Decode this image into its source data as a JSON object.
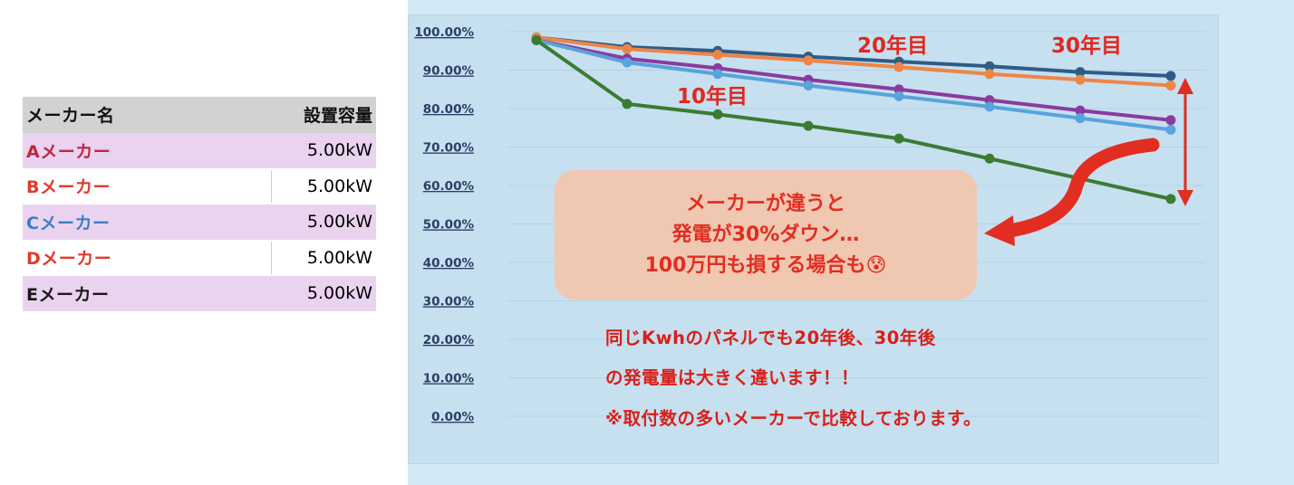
{
  "table": {
    "header": {
      "name": "メーカー名",
      "capacity": "設置容量"
    },
    "rows": [
      {
        "name": "Aメーカー",
        "capacity": "5.00kW",
        "name_color": "#c0263f"
      },
      {
        "name": "Bメーカー",
        "capacity": "5.00kW",
        "name_color": "#e03a2c"
      },
      {
        "name": "Cメーカー",
        "capacity": "5.00kW",
        "name_color": "#3f7fc4"
      },
      {
        "name": "Dメーカー",
        "capacity": "5.00kW",
        "name_color": "#e03a2c"
      },
      {
        "name": "Eメーカー",
        "capacity": "5.00kW",
        "name_color": "#1a1a1a"
      }
    ]
  },
  "chart_data": {
    "type": "line",
    "title": "",
    "xlabel": "",
    "ylabel": "",
    "ylim": [
      0,
      100
    ],
    "y_ticks": [
      "0.00%",
      "10.00%",
      "20.00%",
      "30.00%",
      "40.00%",
      "50.00%",
      "60.00%",
      "70.00%",
      "80.00%",
      "90.00%",
      "100.00%"
    ],
    "x": [
      1,
      2,
      3,
      4,
      5,
      6,
      7,
      8
    ],
    "grid": true,
    "legend": "none",
    "series": [
      {
        "color": "#2e5c86",
        "values": [
          98.5,
          96,
          95,
          93.5,
          92.2,
          91,
          89.5,
          88.5
        ]
      },
      {
        "color": "#ee8547",
        "values": [
          98.5,
          95.5,
          94,
          92.5,
          90.8,
          89,
          87.5,
          86
        ]
      },
      {
        "color": "#8a3b9e",
        "values": [
          97.8,
          93,
          90.5,
          87.5,
          85,
          82.2,
          79.5,
          77
        ]
      },
      {
        "color": "#58a3dc",
        "values": [
          97.8,
          92,
          89,
          86,
          83.2,
          80.5,
          77.5,
          74.5
        ]
      },
      {
        "color": "#3c7b32",
        "values": [
          97.8,
          81.2,
          78.5,
          75.5,
          72.2,
          67,
          61.8,
          56.5
        ]
      }
    ],
    "annotations": {
      "year10": "10年目",
      "year20": "20年目",
      "year30": "30年目"
    }
  },
  "callout": {
    "line1": "メーカーが違うと",
    "line2": "発電が30%ダウン…",
    "line3": "100万円も損する場合も",
    "emoji": "😰"
  },
  "notes": {
    "line1": "同じKwhのパネルでも20年後、30年後",
    "line2": "の発電量は大きく違います！！",
    "line3": "※取付数の多いメーカーで比較しております。"
  },
  "colors": {
    "accent_red": "#e22d21",
    "table_shade": "#ead3ef",
    "panel_bg": "#d3e9f6"
  }
}
